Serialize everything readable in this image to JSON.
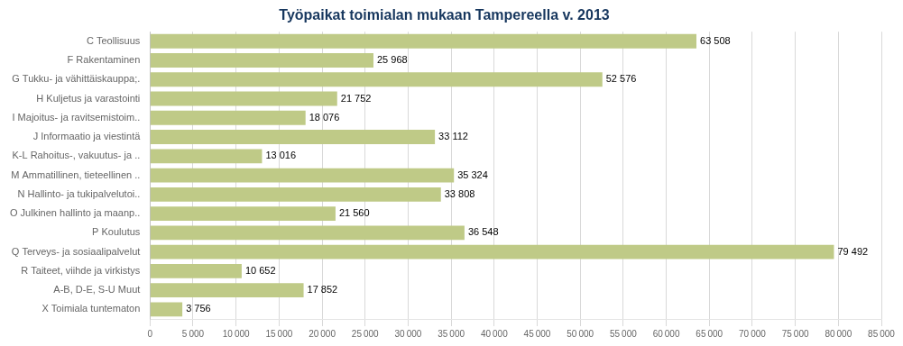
{
  "chart_data": {
    "type": "bar",
    "orientation": "horizontal",
    "title": "Työpaikat toimialan mukaan Tampereella v. 2013",
    "categories": [
      "C Teollisuus",
      "F Rakentaminen",
      "G Tukku- ja vähittäiskauppa;.",
      "H Kuljetus ja varastointi",
      "I Majoitus- ja ravitsemistoim..",
      "J Informaatio ja viestintä",
      "K-L Rahoitus-, vakuutus- ja ..",
      "M Ammatillinen, tieteellinen ..",
      "N Hallinto- ja tukipalvelutoi..",
      "O Julkinen hallinto ja maanp..",
      "P Koulutus",
      "Q Terveys- ja sosiaalipalvelut",
      "R Taiteet, viihde ja virkistys",
      "A-B, D-E, S-U Muut",
      "X Toimiala tuntematon"
    ],
    "values": [
      63508,
      25968,
      52576,
      21752,
      18076,
      33112,
      13016,
      35324,
      33808,
      21560,
      36548,
      79492,
      10652,
      17852,
      3756
    ],
    "value_labels": [
      "63 508",
      "25 968",
      "52 576",
      "21 752",
      "18 076",
      "33 112",
      "13 016",
      "35 324",
      "33 808",
      "21 560",
      "36 548",
      "79 492",
      "10 652",
      "17 852",
      "3 756"
    ],
    "data_labels": true,
    "color": "#bfca87",
    "xlim": [
      0,
      85000
    ],
    "xticks": [
      0,
      {
        "value": 5000,
        "label": "5 000"
      },
      {
        "value": 10000,
        "label": "10 000"
      },
      {
        "value": 15000,
        "label": "15 000"
      },
      {
        "value": 20000,
        "label": "20 000"
      },
      {
        "value": 25000,
        "label": "25 000"
      },
      {
        "value": 30000,
        "label": "30 000"
      },
      {
        "value": 35000,
        "label": "35 000"
      },
      {
        "value": 40000,
        "label": "40 000"
      },
      {
        "value": 45000,
        "label": "45 000"
      },
      {
        "value": 50000,
        "label": "50 000"
      },
      {
        "value": 55000,
        "label": "55 000"
      },
      {
        "value": 60000,
        "label": "60 000"
      },
      {
        "value": 65000,
        "label": "65 000"
      },
      {
        "value": 70000,
        "label": "70 000"
      },
      {
        "value": 75000,
        "label": "75 000"
      },
      {
        "value": 80000,
        "label": "80 000"
      },
      {
        "value": 85000,
        "label": "85 000"
      }
    ],
    "grid": true
  }
}
